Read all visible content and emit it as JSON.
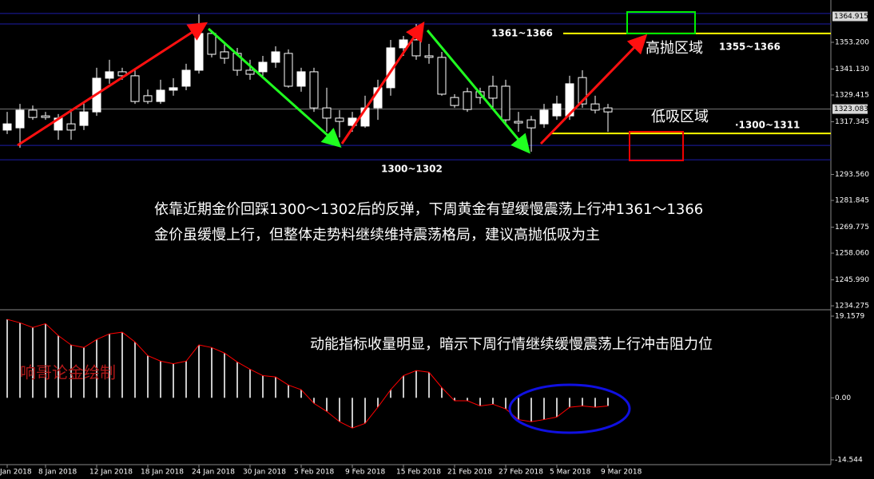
{
  "chart_data": [
    {
      "type": "candlestick",
      "categories": [
        "Jan 2018",
        null,
        null,
        "8 Jan 2018",
        null,
        null,
        null,
        "12 Jan 2018",
        null,
        null,
        null,
        "18 Jan 2018",
        null,
        null,
        null,
        "24 Jan 2018",
        null,
        null,
        null,
        "30 Jan 2018",
        null,
        null,
        null,
        "5 Feb 2018",
        null,
        null,
        null,
        "9 Feb 2018",
        null,
        null,
        null,
        "15 Feb 2018",
        null,
        null,
        null,
        "21 Feb 2018",
        null,
        null,
        null,
        "27 Feb 2018",
        null,
        null,
        null,
        "5 Mar 2018",
        null,
        null,
        null,
        "9 Mar 2018"
      ],
      "open": [
        1313.6,
        1314.6,
        1322.6,
        1320.0,
        1313.6,
        1316.4,
        1315.7,
        1321.8,
        1337.0,
        1339.9,
        1338.1,
        1329.1,
        1326.5,
        1331.6,
        1333.4,
        1340.6,
        1357.2,
        1348.9,
        1348.2,
        1340.6,
        1339.9,
        1344.2,
        1348.2,
        1333.4,
        1339.9,
        1323.6,
        1319.0,
        1315.7,
        1315.4,
        1323.6,
        1332.7,
        1350.7,
        1354.3,
        1347.1,
        1346.4,
        1328.3,
        1330.9,
        1330.9,
        1333.4,
        1333.4,
        1317.5,
        1318.2,
        1316.4,
        1320.0,
        1320.0,
        1337.3,
        1325.4,
        1323.6
      ],
      "high": [
        1321.8,
        1325.4,
        1324.7,
        1321.8,
        1320.8,
        1321.8,
        1326.2,
        1341.7,
        1345.3,
        1341.7,
        1340.6,
        1331.9,
        1336.3,
        1337.0,
        1343.5,
        1365.8,
        1358.6,
        1352.5,
        1350.7,
        1345.3,
        1347.1,
        1351.4,
        1350.0,
        1341.7,
        1341.7,
        1332.7,
        1322.6,
        1321.8,
        1329.1,
        1336.3,
        1354.3,
        1356.1,
        1361.5,
        1352.5,
        1348.9,
        1329.8,
        1332.7,
        1332.7,
        1338.1,
        1336.3,
        1321.8,
        1320.0,
        1325.4,
        1329.1,
        1338.1,
        1340.6,
        1329.1,
        1325.4
      ],
      "low": [
        1311.8,
        1305.6,
        1318.2,
        1318.2,
        1309.2,
        1309.2,
        1313.6,
        1320.0,
        1334.5,
        1336.3,
        1325.4,
        1325.4,
        1325.4,
        1329.1,
        1331.6,
        1339.1,
        1346.4,
        1343.5,
        1338.1,
        1336.3,
        1338.1,
        1341.7,
        1332.7,
        1330.9,
        1321.8,
        1312.8,
        1310.3,
        1312.8,
        1314.6,
        1318.2,
        1329.1,
        1347.1,
        1345.3,
        1343.5,
        1329.1,
        1323.6,
        1321.8,
        1325.4,
        1323.6,
        1316.4,
        1312.8,
        1303.8,
        1314.6,
        1318.2,
        1318.2,
        1323.6,
        1321.1,
        1312.8
      ],
      "close": [
        1316.4,
        1322.6,
        1319.3,
        1319.3,
        1319.0,
        1313.6,
        1321.8,
        1337.0,
        1339.9,
        1338.1,
        1326.5,
        1326.5,
        1331.6,
        1332.7,
        1340.6,
        1357.2,
        1347.8,
        1346.0,
        1340.6,
        1338.8,
        1344.2,
        1348.9,
        1333.4,
        1339.9,
        1323.6,
        1319.0,
        1317.5,
        1319.0,
        1323.6,
        1332.7,
        1350.7,
        1354.3,
        1347.1,
        1346.4,
        1329.8,
        1324.7,
        1322.9,
        1328.3,
        1328.0,
        1318.2,
        1316.8,
        1314.6,
        1322.6,
        1325.4,
        1334.5,
        1325.4,
        1322.6,
        1321.8
      ],
      "up_color": "#ffffff",
      "down_color": "#000000",
      "ylim": [
        1232.5,
        1372.3
      ],
      "yticks": [
        {
          "value": 1353.2,
          "label": "1353.200"
        },
        {
          "value": 1341.13,
          "label": "1341.130"
        },
        {
          "value": 1329.415,
          "label": "1329.415"
        },
        {
          "value": 1317.345,
          "label": "1317.345"
        },
        {
          "value": 1293.56,
          "label": "1293.560"
        },
        {
          "value": 1281.845,
          "label": "1281.845"
        },
        {
          "value": 1269.775,
          "label": "1269.775"
        },
        {
          "value": 1258.06,
          "label": "1258.060"
        },
        {
          "value": 1245.99,
          "label": "1245.990"
        },
        1234.275
      ],
      "price_labels": [
        1364.915,
        1323.083
      ],
      "hlines": [
        1366.2,
        1361.5,
        1306.7,
        1300.2
      ],
      "hline_color": "#1c1ca8",
      "zone_lines": [
        1357.2,
        1312.1
      ],
      "zone_color": "#ffff00"
    },
    {
      "type": "bar",
      "values": [
        18.4,
        17.6,
        16.5,
        17.4,
        14.6,
        12.4,
        11.8,
        13.7,
        15.0,
        15.4,
        13.1,
        9.9,
        8.6,
        8.0,
        8.6,
        12.4,
        11.8,
        10.5,
        8.4,
        6.7,
        5.2,
        4.9,
        3.0,
        1.9,
        -1.3,
        -3.2,
        -5.6,
        -7.1,
        -6.0,
        -2.2,
        1.9,
        5.2,
        6.4,
        6.0,
        2.4,
        -0.7,
        -0.7,
        -1.9,
        -1.5,
        -2.6,
        -5.1,
        -5.6,
        -5.1,
        -4.5,
        -2.2,
        -1.9,
        -2.2,
        -1.9
      ],
      "color": "#c8c8c8",
      "line_color": "#ff0000",
      "ylim": [
        -14.544,
        19.1579
      ],
      "yticks": [
        19.1579,
        {
          "value": 0,
          "label": "0.00"
        },
        -14.544
      ]
    }
  ],
  "annotations": {
    "high_range": "1361~1366",
    "high_zone": "高抛区域",
    "high_zone_range": "1355~1366",
    "low_zone": "低吸区域",
    "low_zone_range": "·1300~1311",
    "support": "1300~1302",
    "commentary": [
      "依靠近期金价回踩1300～1302后的反弹，下周黄金有望缓慢震荡上行冲1361～1366",
      "金价虽缓慢上行，但整体走势料继续维持震荡格局，建议高抛低吸为主"
    ],
    "momentum_note": "动能指标收量明显，暗示下周行情继续缓慢震荡上行冲击阻力位",
    "watermark": "响哥论金绘制"
  }
}
